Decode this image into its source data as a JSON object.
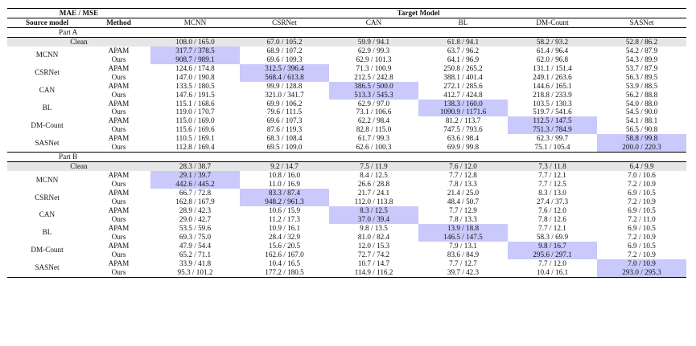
{
  "header": {
    "corner": "MAE / MSE",
    "target_model": "Target Model",
    "source_model": "Source model",
    "method": "Method",
    "targets": [
      "MCNN",
      "CSRNet",
      "CAN",
      "BL",
      "DM-Count",
      "SASNet"
    ]
  },
  "parts": [
    {
      "title": "Part A",
      "clean": {
        "label": "Clean",
        "values": [
          "108.0 / 165.0",
          "67.0 / 105.2",
          "59.9 / 94.1",
          "61.8 / 94.1",
          "58.2 / 93.2",
          "52.8 / 86.2"
        ]
      },
      "groups": [
        {
          "source": "MCNN",
          "apam": [
            "317.7 / 378.5",
            "68.9 / 107.2",
            "62.9 / 99.3",
            "63.7 / 96.2",
            "61.4 / 96.4",
            "54.2 / 87.9"
          ],
          "ours": [
            "908.7 / 989.1",
            "69.6 / 109.3",
            "62.9 / 101.3",
            "64.1 / 96.9",
            "62.0 / 96.8",
            "54.3 / 89.9"
          ]
        },
        {
          "source": "CSRNet",
          "apam": [
            "124.6 / 174.8",
            "312.5 / 396.4",
            "71.3 / 100.9",
            "250.8 / 265.2",
            "131.1 / 151.4",
            "53.7 / 87.9"
          ],
          "ours": [
            "147.0 / 190.8",
            "568.4 / 613.8",
            "212.5 / 242.8",
            "388.1 / 401.4",
            "249.1 / 263.6",
            "56.3 / 89.5"
          ]
        },
        {
          "source": "CAN",
          "apam": [
            "133.5 / 180.5",
            "99.9 / 128.8",
            "386.5 / 500.0",
            "272.1 / 285.6",
            "144.6 / 165.1",
            "53.9 / 88.5"
          ],
          "ours": [
            "147.6 / 191.5",
            "321.0 / 341.7",
            "513.3 / 545.3",
            "412.7 / 424.8",
            "218.8 / 233.9",
            "56.2 / 88.8"
          ]
        },
        {
          "source": "BL",
          "apam": [
            "115.1 / 168.6",
            "69.9 / 106.2",
            "62.9 / 97.0",
            "138.3 / 160.0",
            "103.5 / 130.3",
            "54.0 / 88.0"
          ],
          "ours": [
            "119.0 / 170.7",
            "79.6 / 111.5",
            "73.1 / 106.6",
            "1090.9 / 1171.6",
            "519.7 / 541.6",
            "54.5 / 90.0"
          ]
        },
        {
          "source": "DM-Count",
          "apam": [
            "115.0 / 169.0",
            "69.6 / 107.3",
            "62.2 / 98.4",
            "81.2 / 113.7",
            "112.5 / 147.5",
            "54.1 / 88.1"
          ],
          "ours": [
            "115.6 / 169.6",
            "87.6 / 119.3",
            "82.8 / 115.0",
            "747.5 / 793.6",
            "751.3 / 784.9",
            "56.5 / 90.8"
          ]
        },
        {
          "source": "SASNet",
          "apam": [
            "110.5 / 169.1",
            "68.3 / 108.4",
            "61.7 / 99.3",
            "63.6 / 98.4",
            "62.3 / 99.7",
            "58.8 / 99.8"
          ],
          "ours": [
            "112.8 / 169.4",
            "69.5 / 109.0",
            "62.6 / 100.3",
            "69.9 / 99.8",
            "75.1 / 105.4",
            "200.0 / 220.3"
          ]
        }
      ]
    },
    {
      "title": "Part B",
      "clean": {
        "label": "Clean",
        "values": [
          "28.3 / 38.7",
          "9.2 / 14.7",
          "7.5 / 11.9",
          "7.6 / 12.0",
          "7.3 / 11.8",
          "6.4 / 9.9"
        ]
      },
      "groups": [
        {
          "source": "MCNN",
          "apam": [
            "29.1 / 39.7",
            "10.8 / 16.0",
            "8.4 / 12.5",
            "7.7 / 12.8",
            "7.7 / 12.1",
            "7.0 / 10.6"
          ],
          "ours": [
            "442.6 / 445.2",
            "11.0 / 16.9",
            "26.6 / 28.8",
            "7.8 / 13.3",
            "7.7 / 12.5",
            "7.2 / 10.9"
          ]
        },
        {
          "source": "CSRNet",
          "apam": [
            "66.7 / 72.8",
            "83.3 / 87.4",
            "21.7 / 24.1",
            "21.4 / 25.0",
            "8.3 / 13.0",
            "6.9 / 10.5"
          ],
          "ours": [
            "162.8 / 167.9",
            "948.2 / 961.3",
            "112.0 / 113.8",
            "48.4 / 50.7",
            "27.4 / 37.3",
            "7.2 / 10.9"
          ]
        },
        {
          "source": "CAN",
          "apam": [
            "28.9 / 42.3",
            "10.6 / 15.9",
            "8.3 / 12.5",
            "7.7 / 12.9",
            "7.6 / 12.0",
            "6.9 / 10.5"
          ],
          "ours": [
            "29.0 / 42.7",
            "11.2 / 17.3",
            "37.0 / 39.4",
            "7.8 / 13.3",
            "7.8 / 12.6",
            "7.2 / 11.0"
          ]
        },
        {
          "source": "BL",
          "apam": [
            "53.5 / 59.6",
            "10.9 / 16.1",
            "9.8 / 13.5",
            "13.9 / 18.8",
            "7.7 / 12.1",
            "6.9 / 10.5"
          ],
          "ours": [
            "69.3 / 75.0",
            "28.4 / 32.9",
            "81.0 / 82.4",
            "146.5 / 147.5",
            "58.3 / 69.9",
            "7.2 / 10.9"
          ]
        },
        {
          "source": "DM-Count",
          "apam": [
            "47.9 / 54.4",
            "15.6 / 20.5",
            "12.0 / 15.3",
            "7.9 / 13.1",
            "9.8 / 16.7",
            "6.9 / 10.5"
          ],
          "ours": [
            "65.2 / 71.1",
            "162.6 / 167.0",
            "72.7 / 74.2",
            "83.6 / 84.9",
            "295.6 / 297.1",
            "7.2 / 10.9"
          ]
        },
        {
          "source": "SASNet",
          "apam": [
            "33.9 / 41.8",
            "10.4 / 16.5",
            "10.7 / 14.7",
            "7.7 / 12.7",
            "7.7 / 12.0",
            "7.0 / 10.9"
          ],
          "ours": [
            "95.3 / 101.2",
            "177.2 / 180.5",
            "114.9 / 116.2",
            "39.7 / 42.3",
            "10.4 / 16.1",
            "293.0 / 295.3"
          ]
        }
      ]
    }
  ],
  "labels": {
    "apam": "APAM",
    "ours": "Ours"
  },
  "colors": {
    "highlight": "#c9c9fb",
    "clean_row": "#e6e6e6"
  }
}
